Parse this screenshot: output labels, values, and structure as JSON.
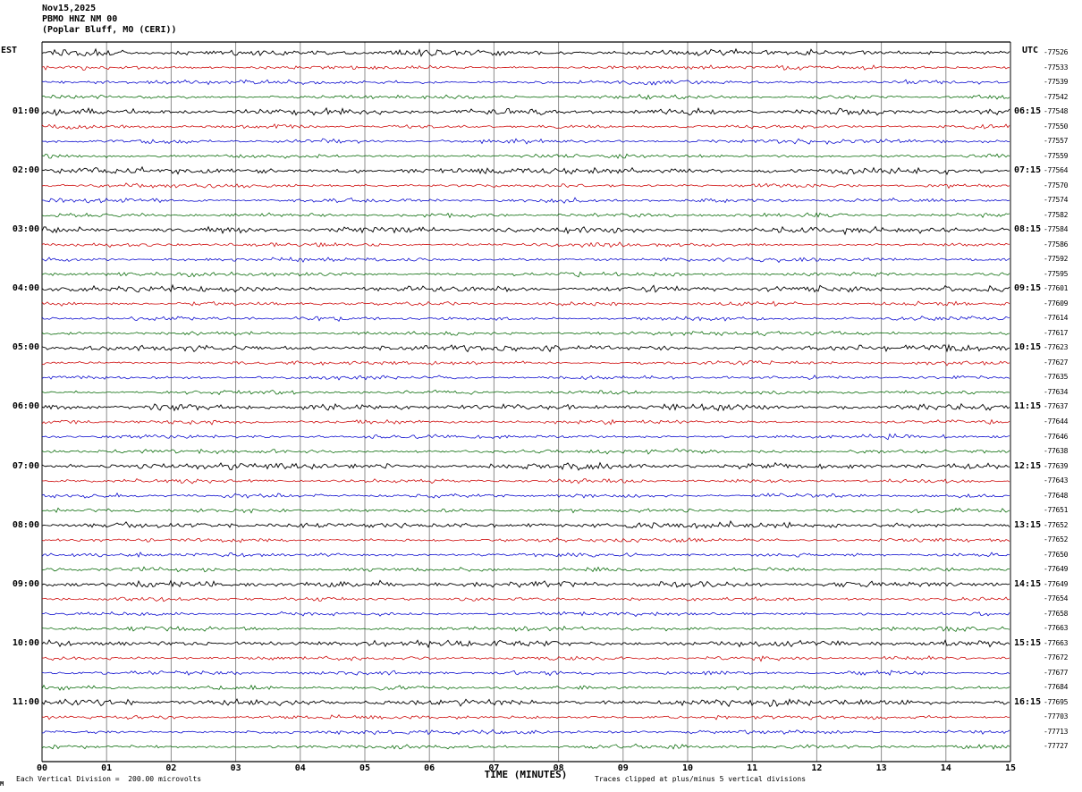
{
  "title": {
    "date": "Nov15,2025",
    "station": "PBMO HNZ NM 00",
    "location": "(Poplar Bluff, MO (CERI))"
  },
  "axes": {
    "left_label": "EST",
    "right_label": "UTC",
    "x_title": "TIME (MINUTES)"
  },
  "footer": {
    "scale_note": "Each Vertical Division =  200.00 microvolts",
    "clip_note": "Traces clipped at plus/minus 5 vertical divisions",
    "corner_mark": "M"
  },
  "chart_data": {
    "type": "line",
    "x_axis_label": "TIME (MINUTES)",
    "x_tick_labels": [
      "00",
      "01",
      "02",
      "03",
      "04",
      "05",
      "06",
      "07",
      "08",
      "09",
      "10",
      "11",
      "12",
      "13",
      "14",
      "15"
    ],
    "x_range_minutes": [
      0,
      15
    ],
    "minutes_per_line": 15,
    "row_count": 48,
    "trace_color_cycle": [
      "#000000",
      "#cc0000",
      "#0000cc",
      "#006600"
    ],
    "hour_label_start_row": 4,
    "hour_label_row_step": 4,
    "est_hour_labels": [
      "01:00",
      "02:00",
      "03:00",
      "04:00",
      "05:00",
      "06:00",
      "07:00",
      "08:00",
      "09:00",
      "10:00",
      "11:00"
    ],
    "utc_hour_labels": [
      "06:15",
      "07:15",
      "08:15",
      "09:15",
      "10:15",
      "11:15",
      "12:15",
      "13:15",
      "14:15",
      "15:15",
      "16:15"
    ],
    "right_edge_values": [
      -77526,
      -77533,
      -77539,
      -77542,
      -77548,
      -77550,
      -77557,
      -77559,
      -77564,
      -77570,
      -77574,
      -77582,
      -77584,
      -77586,
      -77592,
      -77595,
      -77601,
      -77609,
      -77614,
      -77617,
      -77623,
      -77627,
      -77635,
      -77634,
      -77637,
      -77644,
      -77646,
      -77638,
      -77639,
      -77643,
      -77648,
      -77651,
      -77652,
      -77652,
      -77650,
      -77649,
      -77649,
      -77654,
      -77658,
      -77663,
      -77663,
      -77672,
      -77677,
      -77684,
      -77695,
      -77703,
      -77713,
      -77727
    ],
    "microvolts_per_division": 200.0,
    "clip_divisions": 5
  }
}
